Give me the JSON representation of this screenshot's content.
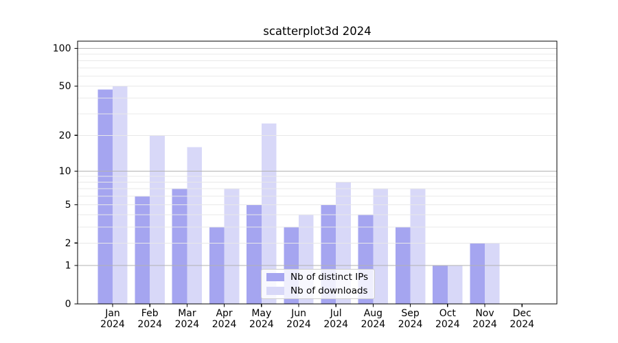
{
  "title": "scatterplot3d 2024",
  "legend": {
    "items": [
      {
        "label": "Nb of distinct IPs"
      },
      {
        "label": "Nb of downloads"
      }
    ]
  },
  "chart_data": {
    "type": "bar",
    "title": "scatterplot3d 2024",
    "categories": [
      "Jan 2024",
      "Feb 2024",
      "Mar 2024",
      "Apr 2024",
      "May 2024",
      "Jun 2024",
      "Jul 2024",
      "Aug 2024",
      "Sep 2024",
      "Oct 2024",
      "Nov 2024",
      "Dec 2024"
    ],
    "x_tick_months": [
      "Jan",
      "Feb",
      "Mar",
      "Apr",
      "May",
      "Jun",
      "Jul",
      "Aug",
      "Sep",
      "Oct",
      "Nov",
      "Dec"
    ],
    "x_tick_year": "2024",
    "series": [
      {
        "name": "Nb of distinct IPs",
        "color": "#a5a5f0",
        "values": [
          47,
          6,
          7,
          3,
          5,
          3,
          5,
          4,
          3,
          1,
          2,
          0
        ]
      },
      {
        "name": "Nb of downloads",
        "color": "#d8d8f8",
        "values": [
          50,
          20,
          16,
          7,
          25,
          4,
          8,
          7,
          7,
          1,
          2,
          0
        ]
      }
    ],
    "xlabel": "",
    "ylabel": "",
    "y_scale": "log10(1+x)",
    "ylim": [
      0,
      114
    ],
    "y_ticks": [
      0,
      1,
      2,
      5,
      10,
      20,
      50,
      100
    ],
    "grid": true,
    "major_grid_values": [
      1,
      10,
      100
    ],
    "minor_grid_values": [
      2,
      3,
      4,
      5,
      6,
      7,
      8,
      9,
      20,
      30,
      40,
      50,
      60,
      70,
      80,
      90
    ],
    "legend_position": "lower center inside plot",
    "colors": {
      "spine": "#000000",
      "tick_label": "#000000",
      "major_grid": "#b2b2b2",
      "minor_grid": "#e8e8e8"
    }
  }
}
